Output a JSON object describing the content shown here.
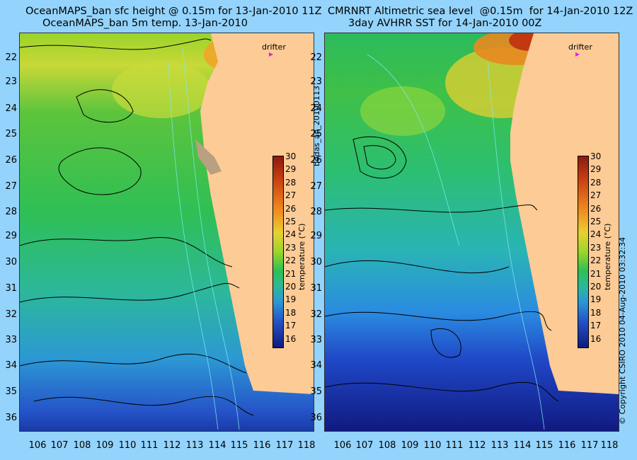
{
  "left": {
    "title_line1": "OceanMAPS_ban sfc height @ 0.15m for 13-Jan-2010 11Z",
    "title_line2": "OceanMAPS_ban 5m temp. 13-Jan-2010"
  },
  "right": {
    "title_line1": "CMRNRT Altimetric sea level  @0.15m  for 14-Jan-2010 12Z",
    "title_line2": "3day AVHRR SST for 14-Jan-2010 00Z"
  },
  "drifter_label": "drifter",
  "colorbar": {
    "label": "temperature (°C)",
    "ticks": [
      "30",
      "29",
      "28",
      "27",
      "26",
      "25",
      "24",
      "23",
      "22",
      "21",
      "20",
      "19",
      "18",
      "17",
      "16"
    ]
  },
  "lat_ticks": [
    "22",
    "23",
    "24",
    "25",
    "26",
    "27",
    "28",
    "29",
    "30",
    "31",
    "32",
    "33",
    "34",
    "35",
    "36"
  ],
  "lon_ticks": [
    "106",
    "107",
    "108",
    "109",
    "110",
    "111",
    "112",
    "113",
    "114",
    "115",
    "116",
    "117",
    "118"
  ],
  "side_label": "bodas_an_20100113",
  "copyright": "© Copyright CSIRO 2010   04-Aug-2010 03:32:34",
  "colors": {
    "background": "#94d3fb",
    "land": "#fdcb96",
    "warm": "#e07010",
    "cool": "#1030a0"
  }
}
